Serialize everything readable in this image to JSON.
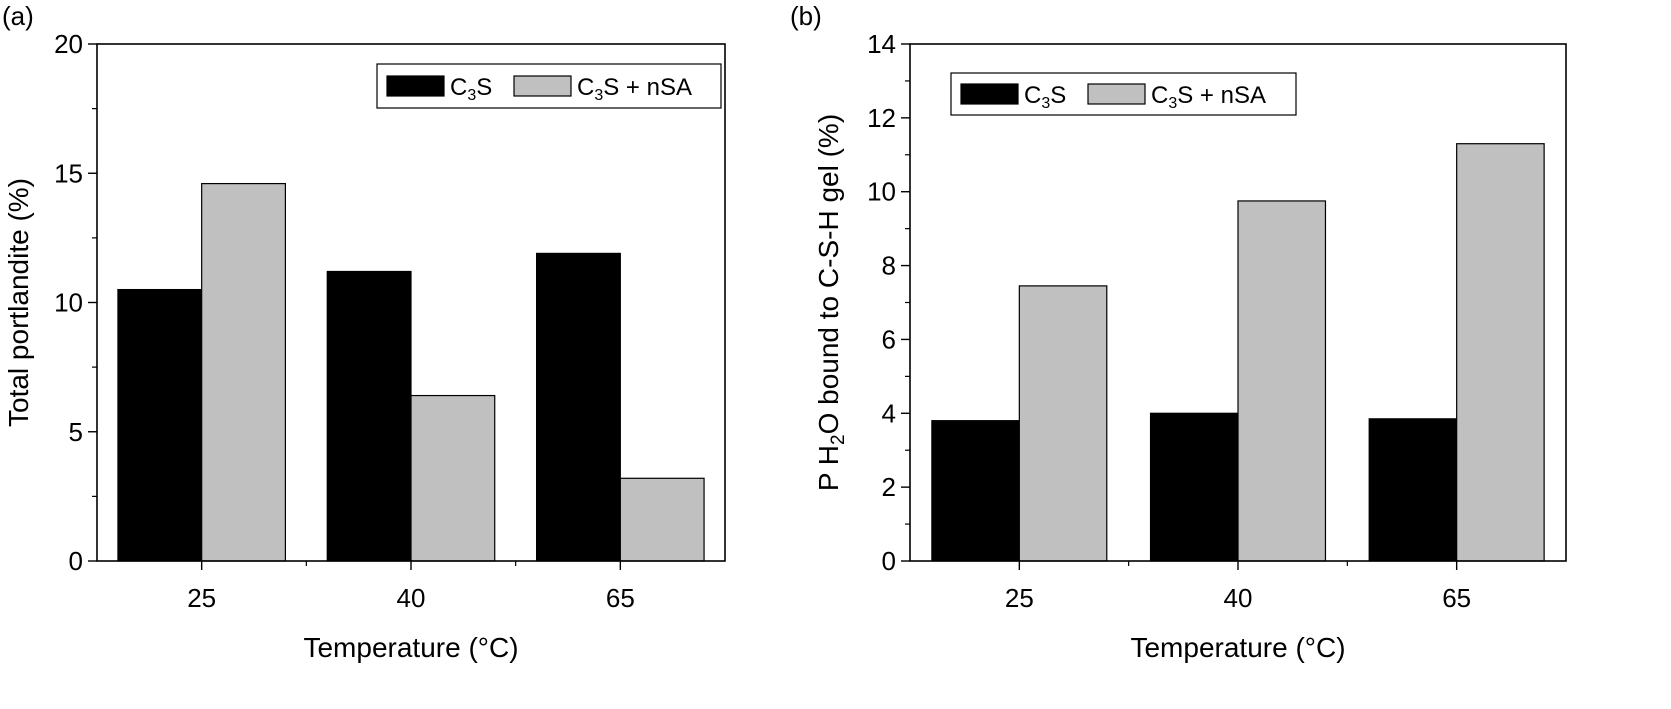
{
  "chart_data": [
    {
      "type": "bar",
      "panel_label": "(a)",
      "categories": [
        "25",
        "40",
        "65"
      ],
      "xlabel": "Temperature (°C)",
      "ylabel": "Total portlandite (%)",
      "ylim": [
        0,
        20
      ],
      "yticks": [
        "0",
        "5",
        "10",
        "15",
        "20"
      ],
      "series": [
        {
          "name": "C3S",
          "name_main": "C",
          "name_sub": "3",
          "name_rest": "S",
          "color": "#000000",
          "values": [
            10.5,
            11.2,
            11.9
          ]
        },
        {
          "name": "C3S + nSA",
          "name_main": "C",
          "name_sub": "3",
          "name_rest": "S + nSA",
          "color": "#c0c0c0",
          "values": [
            14.6,
            6.4,
            3.2
          ]
        }
      ],
      "legend_placement": "top-right",
      "grid": false
    },
    {
      "type": "bar",
      "panel_label": "(b)",
      "categories": [
        "25",
        "40",
        "65"
      ],
      "xlabel": "Temperature (°C)",
      "ylabel": "P H2O bound to C-S-H gel (%)",
      "ylabel_parts": {
        "before": "P H",
        "sub": "2",
        "after": "O bound to C-S-H gel (%)"
      },
      "ylim": [
        0,
        14
      ],
      "yticks": [
        "0",
        "2",
        "4",
        "6",
        "8",
        "10",
        "12",
        "14"
      ],
      "series": [
        {
          "name": "C3S",
          "name_main": "C",
          "name_sub": "3",
          "name_rest": "S",
          "color": "#000000",
          "values": [
            3.8,
            4.0,
            3.85
          ]
        },
        {
          "name": "C3S + nSA",
          "name_main": "C",
          "name_sub": "3",
          "name_rest": "S + nSA",
          "color": "#c0c0c0",
          "values": [
            7.45,
            9.75,
            11.3
          ]
        }
      ],
      "legend_placement": "top-left",
      "grid": false
    }
  ]
}
